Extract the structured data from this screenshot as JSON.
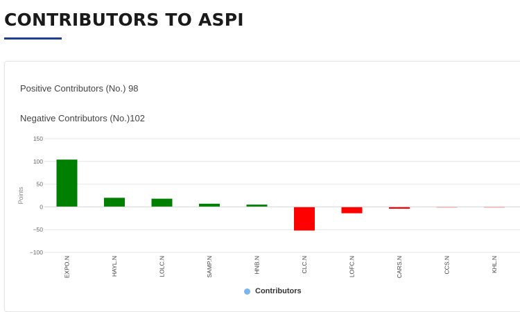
{
  "header": {
    "title": "CONTRIBUTORS TO ASPI"
  },
  "stats": {
    "positive_label": "Positive Contributors (No.)",
    "positive_value": "98",
    "negative_label": "Negative Contributors (No.)",
    "negative_value": "102"
  },
  "colors": {
    "positive": "#008000",
    "negative": "#ff0000",
    "legend": "#7cb5ec",
    "accent": "#1e3f8f"
  },
  "chart_data": {
    "type": "bar",
    "title": "",
    "ylabel": "Points",
    "xlabel": "",
    "ylim": [
      -100,
      150
    ],
    "yticks": [
      150,
      100,
      50,
      0,
      -50,
      -100
    ],
    "ytick_labels": [
      "150",
      "100",
      "50",
      "0",
      "−50",
      "−100"
    ],
    "categories": [
      "EXPO.N",
      "HAYL.N",
      "LOLC.N",
      "SAMP.N",
      "HNB.N",
      "CLC.N",
      "LOFC.N",
      "CARS.N",
      "CCS.N",
      "KHL.N"
    ],
    "series": [
      {
        "name": "Contributors",
        "values": [
          104,
          20,
          18,
          7,
          5,
          -52,
          -14,
          -4,
          -0.5,
          -0.3
        ]
      }
    ],
    "legend": "Contributors"
  }
}
